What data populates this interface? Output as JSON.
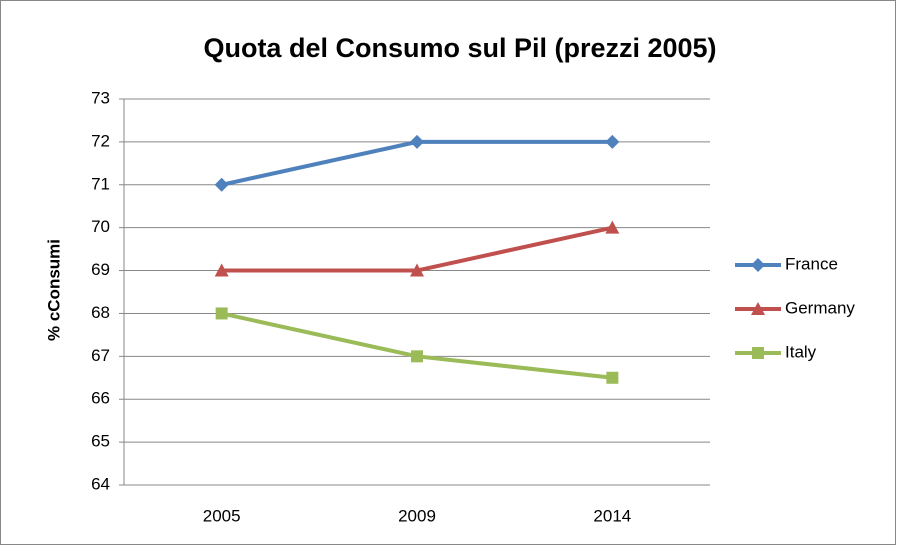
{
  "chart_data": {
    "type": "line",
    "title": "Quota del Consumo sul Pil (prezzi 2005)",
    "y_label": "% cConsumi",
    "categories": [
      "2005",
      "2009",
      "2014"
    ],
    "series": [
      {
        "name": "France",
        "color": "#4f81bd",
        "marker": "diamond",
        "values": [
          71,
          72,
          72
        ]
      },
      {
        "name": "Germany",
        "color": "#c0504d",
        "marker": "triangle",
        "values": [
          69,
          69,
          70
        ]
      },
      {
        "name": "Italy",
        "color": "#9bbb59",
        "marker": "square",
        "values": [
          68,
          67,
          66.5
        ]
      }
    ],
    "ylim": [
      64,
      73
    ],
    "yticks": [
      64,
      65,
      66,
      67,
      68,
      69,
      70,
      71,
      72,
      73
    ],
    "grid": true,
    "legend": "right"
  }
}
